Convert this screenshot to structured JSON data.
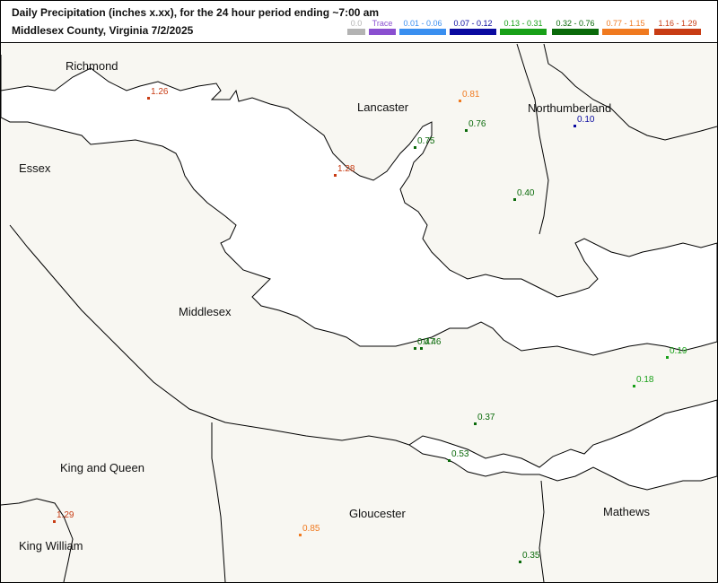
{
  "header": {
    "title_line1": "Daily Precipitation (inches  x.xx),  for the 24 hour period ending ~7:00 am",
    "title_line2": "Middlesex County, Virginia  7/2/2025"
  },
  "legend": [
    {
      "label": "0.0",
      "color": "#b3b3b3"
    },
    {
      "label": "Trace",
      "color": "#8a4fd0"
    },
    {
      "label": "0.01 - 0.06",
      "color": "#3a8ff0"
    },
    {
      "label": "0.07 - 0.12",
      "color": "#0a0aa0"
    },
    {
      "label": "0.13 - 0.31",
      "color": "#18a018"
    },
    {
      "label": "0.32 - 0.76",
      "color": "#0a6a0a"
    },
    {
      "label": "0.77 - 1.15",
      "color": "#f07a20"
    },
    {
      "label": "1.16 - 1.29",
      "color": "#c83c14"
    }
  ],
  "counties": [
    {
      "id": "richmond",
      "name": "Richmond"
    },
    {
      "id": "essex",
      "name": "Essex"
    },
    {
      "id": "lancaster",
      "name": "Lancaster"
    },
    {
      "id": "northumberland",
      "name": "Northumberland"
    },
    {
      "id": "middlesex",
      "name": "Middlesex"
    },
    {
      "id": "king-and-queen",
      "name": "King and Queen"
    },
    {
      "id": "gloucester",
      "name": "Gloucester"
    },
    {
      "id": "mathews",
      "name": "Mathews"
    },
    {
      "id": "king-william",
      "name": "King William"
    }
  ],
  "stations": [
    {
      "value": "1.26",
      "color": "#c83c14"
    },
    {
      "value": "1.28",
      "color": "#c83c14"
    },
    {
      "value": "0.81",
      "color": "#f07a20"
    },
    {
      "value": "0.76",
      "color": "#0a6a0a"
    },
    {
      "value": "0.75",
      "color": "#0a6a0a"
    },
    {
      "value": "0.10",
      "color": "#0a0aa0"
    },
    {
      "value": "0.40",
      "color": "#0a6a0a"
    },
    {
      "value": "0.47",
      "color": "#0a6a0a"
    },
    {
      "value": "0.46",
      "color": "#0a6a0a"
    },
    {
      "value": "0.19",
      "color": "#18a018"
    },
    {
      "value": "0.18",
      "color": "#18a018"
    },
    {
      "value": "0.37",
      "color": "#0a6a0a"
    },
    {
      "value": "0.53",
      "color": "#0a6a0a"
    },
    {
      "value": "1.29",
      "color": "#c83c14"
    },
    {
      "value": "0.85",
      "color": "#f07a20"
    },
    {
      "value": "0.35",
      "color": "#0a6a0a"
    }
  ]
}
